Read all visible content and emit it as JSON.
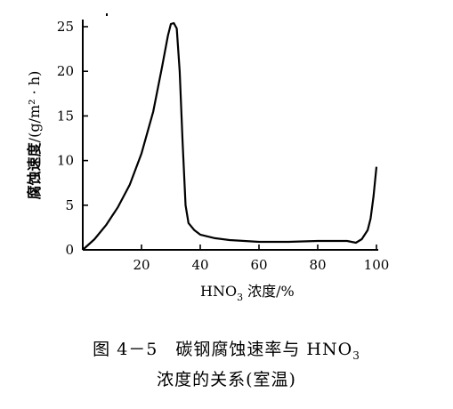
{
  "chart_data": {
    "type": "line",
    "xlabel": "HNO",
    "xlabel_sub": "3",
    "xlabel_rest": " 浓度/%",
    "ylabel_main": "腐蚀速度",
    "ylabel_unit": "/(g/m² · h)",
    "xlim": [
      0,
      100
    ],
    "ylim": [
      0,
      25
    ],
    "x_ticks": [
      20,
      40,
      60,
      80,
      100
    ],
    "y_ticks": [
      0,
      5,
      10,
      15,
      20,
      25
    ],
    "grid": false,
    "series": [
      {
        "x": [
          0,
          4,
          8,
          12,
          16,
          20,
          24,
          27,
          29,
          30,
          31,
          32,
          33,
          34,
          35,
          36,
          38,
          40,
          45,
          50,
          60,
          70,
          80,
          90,
          93,
          95,
          97,
          98,
          99,
          100
        ],
        "y": [
          0,
          1.2,
          2.8,
          4.8,
          7.3,
          10.8,
          15.5,
          20.5,
          24,
          25.3,
          25.4,
          24.8,
          20,
          12,
          5,
          3,
          2.2,
          1.7,
          1.3,
          1.1,
          0.9,
          0.9,
          1.0,
          1.0,
          0.8,
          1.2,
          2.2,
          3.5,
          6,
          9.3
        ]
      }
    ]
  },
  "caption": {
    "line1": "图 4－5　碳钢腐蚀速率与 HNO",
    "line1_sub": "3",
    "line2": "浓度的关系(室温)"
  }
}
